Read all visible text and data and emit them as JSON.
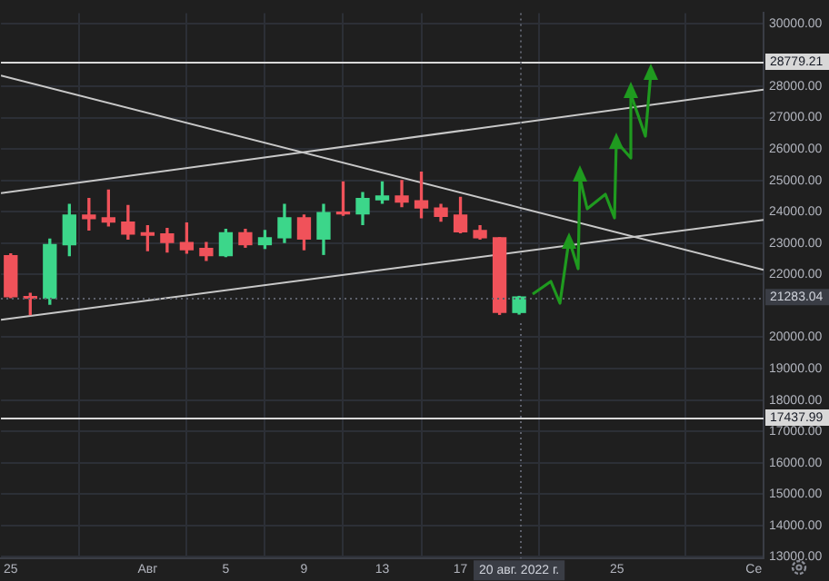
{
  "chart_data": {
    "type": "candlestick",
    "x": [
      "2022-07-25",
      "2022-07-26",
      "2022-07-27",
      "2022-07-28",
      "2022-07-29",
      "2022-07-30",
      "2022-07-31",
      "2022-08-01",
      "2022-08-02",
      "2022-08-03",
      "2022-08-04",
      "2022-08-05",
      "2022-08-06",
      "2022-08-07",
      "2022-08-08",
      "2022-08-09",
      "2022-08-10",
      "2022-08-11",
      "2022-08-12",
      "2022-08-13",
      "2022-08-14",
      "2022-08-15",
      "2022-08-16",
      "2022-08-17",
      "2022-08-18",
      "2022-08-19",
      "2022-08-20"
    ],
    "ohlc": [
      [
        22600,
        22660,
        21260,
        21290
      ],
      [
        21290,
        21400,
        20720,
        21240
      ],
      [
        21240,
        23130,
        21050,
        22950
      ],
      [
        22950,
        24230,
        22600,
        23890
      ],
      [
        23890,
        24420,
        23420,
        23780
      ],
      [
        23810,
        24690,
        23550,
        23670
      ],
      [
        23670,
        24200,
        23130,
        23290
      ],
      [
        23330,
        23550,
        22760,
        23250
      ],
      [
        23290,
        23470,
        22720,
        23020
      ],
      [
        23020,
        23640,
        22680,
        22790
      ],
      [
        22830,
        23020,
        22450,
        22600
      ],
      [
        22600,
        23440,
        22570,
        23330
      ],
      [
        23330,
        23440,
        22870,
        22950
      ],
      [
        22950,
        23400,
        22830,
        23170
      ],
      [
        23170,
        24230,
        23020,
        23810
      ],
      [
        23810,
        23890,
        22790,
        23130
      ],
      [
        23130,
        24230,
        22640,
        23970
      ],
      [
        23970,
        24950,
        23890,
        23930
      ],
      [
        23930,
        24610,
        23590,
        24420
      ],
      [
        24380,
        24950,
        24270,
        24500
      ],
      [
        24500,
        24990,
        24160,
        24310
      ],
      [
        24350,
        25260,
        23810,
        24120
      ],
      [
        24120,
        24230,
        23700,
        23850
      ],
      [
        23890,
        24460,
        23330,
        23360
      ],
      [
        23400,
        23550,
        23130,
        23170
      ],
      [
        23170,
        23170,
        20730,
        20790
      ],
      [
        20790,
        21300,
        20740,
        21283
      ]
    ],
    "colors": [
      "#f0525a",
      "#f0525a",
      "#3cd68a",
      "#3cd68a",
      "#f0525a",
      "#f0525a",
      "#f0525a",
      "#f0525a",
      "#f0525a",
      "#f0525a",
      "#f0525a",
      "#3cd68a",
      "#f0525a",
      "#3cd68a",
      "#3cd68a",
      "#f0525a",
      "#3cd68a",
      "#f0525a",
      "#3cd68a",
      "#3cd68a",
      "#f0525a",
      "#f0525a",
      "#f0525a",
      "#f0525a",
      "#f0525a",
      "#f0525a",
      "#3cd68a"
    ],
    "series": [
      {
        "type": "line",
        "color": "#c8c8c8",
        "x": [
          "2022-07-24T12:00",
          "2022-09-01T12:00"
        ],
        "values": [
          24590,
          27890
        ]
      },
      {
        "type": "line",
        "color": "#c8c8c8",
        "x": [
          "2022-07-24T12:00",
          "2022-09-01T12:00"
        ],
        "values": [
          20560,
          23740
        ]
      },
      {
        "type": "line",
        "color": "#c8c8c8",
        "x": [
          "2022-07-24T12:00",
          "2022-09-01T12:00"
        ],
        "values": [
          28340,
          22150
        ]
      }
    ],
    "xlim": [
      "2022-07-24T12:00",
      "2022-09-01T12:00"
    ],
    "xticks": [
      {
        "value": "2022-07-25",
        "label": "25"
      },
      {
        "value": "2022-08-01",
        "label": "Авг"
      },
      {
        "value": "2022-08-05",
        "label": "5"
      },
      {
        "value": "2022-08-09",
        "label": "9"
      },
      {
        "value": "2022-08-13",
        "label": "13"
      },
      {
        "value": "2022-08-17",
        "label": "17"
      },
      {
        "value": "2022-08-25",
        "label": "25"
      },
      {
        "value": "2022-09-01",
        "label": "Се"
      }
    ],
    "ylim": [
      12950,
      30330
    ],
    "yticks": [
      {
        "value": 13000,
        "label": "13000.00"
      },
      {
        "value": 14000,
        "label": "14000.00"
      },
      {
        "value": 15000,
        "label": "15000.00"
      },
      {
        "value": 16000,
        "label": "16000.00"
      },
      {
        "value": 17000,
        "label": "17000.00"
      },
      {
        "value": 18000,
        "label": "18000.00"
      },
      {
        "value": 19000,
        "label": "19000.00"
      },
      {
        "value": 20000,
        "label": "20000.00"
      },
      {
        "value": 22000,
        "label": "22000.00"
      },
      {
        "value": 23000,
        "label": "23000.00"
      },
      {
        "value": 24000,
        "label": "24000.00"
      },
      {
        "value": 25000,
        "label": "25000.00"
      },
      {
        "value": 26000,
        "label": "26000.00"
      },
      {
        "value": 27000,
        "label": "27000.00"
      },
      {
        "value": 28000,
        "label": "28000.00"
      },
      {
        "value": 30000,
        "label": "30000.00"
      }
    ],
    "ref_lines": [
      {
        "axis": "y",
        "value": 28779.21,
        "label": "28779.21",
        "color": "#d8d8d8",
        "line_style": "solid"
      },
      {
        "axis": "y",
        "value": 17437.99,
        "label": "17437.99",
        "color": "#d8d8d8",
        "line_style": "solid"
      },
      {
        "axis": "y",
        "value": 21283.04,
        "label": "21283.04",
        "color": "#5d606b",
        "line_style": "dotted"
      },
      {
        "axis": "x",
        "value": "2022-08-20",
        "label": "20 авг. 2022 г.",
        "color": "#5d606b",
        "line_style": "dotted"
      }
    ],
    "grid": true,
    "legend": false
  }
}
